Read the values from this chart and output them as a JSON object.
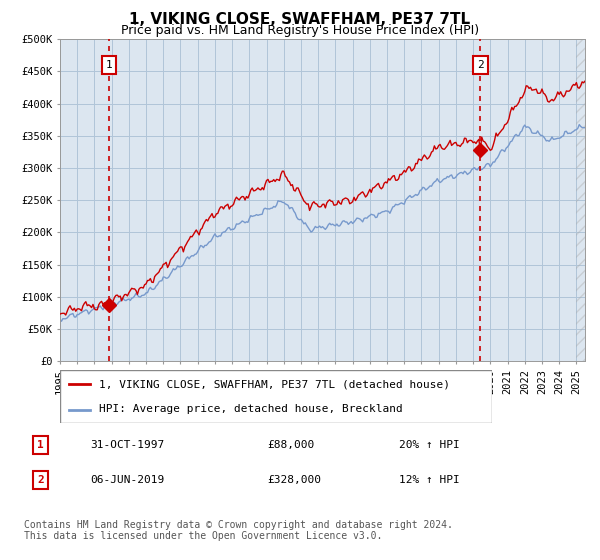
{
  "title": "1, VIKING CLOSE, SWAFFHAM, PE37 7TL",
  "subtitle": "Price paid vs. HM Land Registry's House Price Index (HPI)",
  "ylim": [
    0,
    500000
  ],
  "xlim_start": 1995.0,
  "xlim_end": 2025.5,
  "sale1_year": 1997.833,
  "sale1_price": 88000,
  "sale1_label": "1",
  "sale1_date": "31-OCT-1997",
  "sale1_display": "£88,000",
  "sale1_hpi": "20% ↑ HPI",
  "sale2_year": 2019.42,
  "sale2_price": 328000,
  "sale2_label": "2",
  "sale2_date": "06-JUN-2019",
  "sale2_display": "£328,000",
  "sale2_hpi": "12% ↑ HPI",
  "line_property_color": "#cc0000",
  "line_hpi_color": "#7799cc",
  "marker_color": "#cc0000",
  "dashed_line_color": "#cc0000",
  "legend_property_label": "1, VIKING CLOSE, SWAFFHAM, PE37 7TL (detached house)",
  "legend_hpi_label": "HPI: Average price, detached house, Breckland",
  "footer": "Contains HM Land Registry data © Crown copyright and database right 2024.\nThis data is licensed under the Open Government Licence v3.0.",
  "plot_bg_color": "#dce6f0",
  "grid_color": "#b0c4d8",
  "title_fontsize": 11,
  "subtitle_fontsize": 9,
  "tick_fontsize": 7.5,
  "legend_fontsize": 8,
  "footer_fontsize": 7
}
